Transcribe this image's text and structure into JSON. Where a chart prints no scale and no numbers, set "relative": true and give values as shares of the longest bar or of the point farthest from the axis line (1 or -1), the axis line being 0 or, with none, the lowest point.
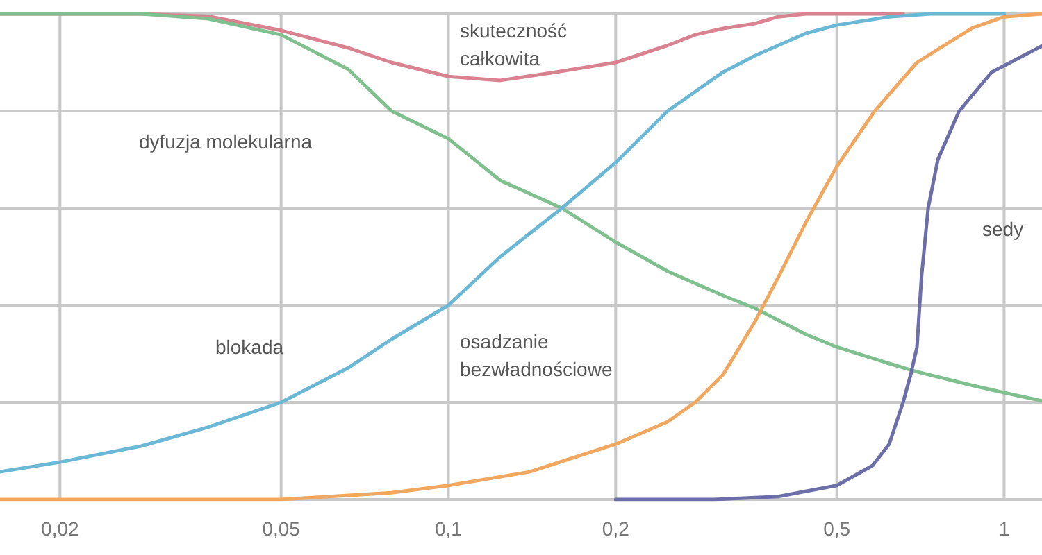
{
  "chart_data": {
    "type": "line",
    "relative": true,
    "log": "x",
    "grid": true,
    "marker": "none",
    "xlim": [
      0.0156,
      1.17
    ],
    "xticks": [
      {
        "value": 0.02,
        "label": "0,02"
      },
      {
        "value": 0.05,
        "label": "0,05"
      },
      {
        "value": 0.1,
        "label": "0,1"
      },
      {
        "value": 0.2,
        "label": "0,2"
      },
      {
        "value": 0.5,
        "label": "0,5"
      },
      1
    ],
    "series": [
      {
        "color": "#d98290",
        "x": [
          0.0156,
          0.028,
          0.037,
          0.05,
          0.066,
          0.079,
          0.1,
          0.124,
          0.156,
          0.2,
          0.248,
          0.278,
          0.312,
          0.356,
          0.392,
          0.44,
          0.5,
          0.553,
          0.621,
          0.658
        ],
        "values": [
          1,
          1,
          0.995,
          0.966,
          0.93,
          0.9,
          0.871,
          0.863,
          0.88,
          0.9,
          0.935,
          0.957,
          0.97,
          0.98,
          0.994,
          1,
          1,
          1,
          1,
          1
        ]
      },
      {
        "color": "#7fc08e",
        "x": [
          0.0156,
          0.028,
          0.037,
          0.05,
          0.066,
          0.079,
          0.1,
          0.124,
          0.16,
          0.2,
          0.248,
          0.312,
          0.356,
          0.44,
          0.5,
          0.621,
          0.697,
          0.876,
          1,
          1.17
        ],
        "values": [
          1,
          1,
          0.99,
          0.957,
          0.886,
          0.8,
          0.743,
          0.657,
          0.6,
          0.53,
          0.47,
          0.42,
          0.394,
          0.34,
          0.314,
          0.28,
          0.263,
          0.235,
          0.22,
          0.203
        ]
      },
      {
        "color": "#6ab8d6",
        "x": [
          0.0156,
          0.02,
          0.028,
          0.037,
          0.05,
          0.066,
          0.079,
          0.1,
          0.124,
          0.16,
          0.2,
          0.248,
          0.312,
          0.356,
          0.44,
          0.5,
          0.621,
          0.738,
          0.876,
          1
        ],
        "values": [
          0.057,
          0.077,
          0.11,
          0.149,
          0.2,
          0.271,
          0.33,
          0.4,
          0.5,
          0.6,
          0.694,
          0.8,
          0.88,
          0.914,
          0.96,
          0.977,
          0.994,
          1,
          1,
          1
        ]
      },
      {
        "color": "#f0a860",
        "x": [
          0.0156,
          0.05,
          0.079,
          0.1,
          0.14,
          0.2,
          0.248,
          0.278,
          0.312,
          0.356,
          0.392,
          0.44,
          0.5,
          0.585,
          0.697,
          0.876,
          1,
          1.17
        ],
        "values": [
          0,
          0,
          0.014,
          0.029,
          0.057,
          0.114,
          0.16,
          0.2,
          0.257,
          0.366,
          0.457,
          0.571,
          0.686,
          0.8,
          0.9,
          0.971,
          0.994,
          1
        ]
      },
      {
        "color": "#6c6ea8",
        "x": [
          0.2,
          0.3,
          0.392,
          0.5,
          0.58,
          0.621,
          0.658,
          0.68,
          0.697,
          0.71,
          0.73,
          0.76,
          0.83,
          0.95,
          1.17
        ],
        "values": [
          0,
          0,
          0.006,
          0.029,
          0.07,
          0.114,
          0.2,
          0.26,
          0.314,
          0.457,
          0.6,
          0.7,
          0.8,
          0.88,
          0.934
        ]
      }
    ],
    "annotations": [
      "skuteczność\ncałkowita",
      "dyfuzja molekularna",
      "blokada",
      "osadzanie\nbezwładnościowe",
      "sedy"
    ]
  }
}
